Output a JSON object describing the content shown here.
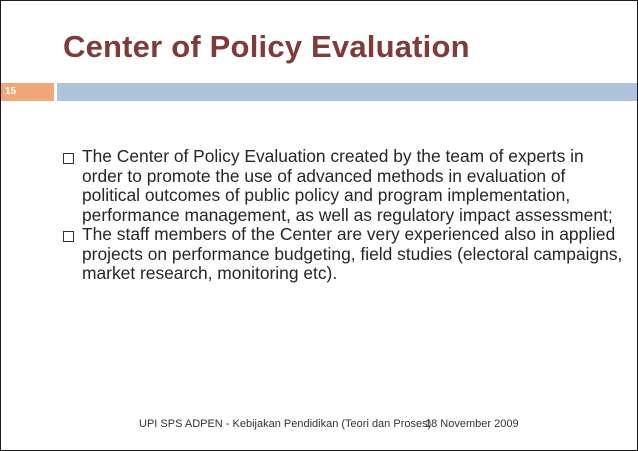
{
  "slide": {
    "title": "Center of Policy Evaluation",
    "page_number": "15",
    "bullets": [
      "The Center of Policy Evaluation created by the team of experts in order to promote the use of advanced methods in evaluation of political outcomes of public policy and program implementation, performance management, as well as regulatory impact assessment;",
      "The staff members of the Center are very experienced also in applied projects on performance budgeting, field studies (electoral campaigns, market research, monitoring etc)."
    ],
    "footer": {
      "left": "UPI SPS ADPEN - Kebijakan Pendidikan (Teori dan Proses)",
      "right": "18 November 2009"
    },
    "colors": {
      "title": "#7f3b38",
      "number_bar": "#f0a878",
      "header_bar": "#afc4dc",
      "text": "#262626"
    }
  }
}
